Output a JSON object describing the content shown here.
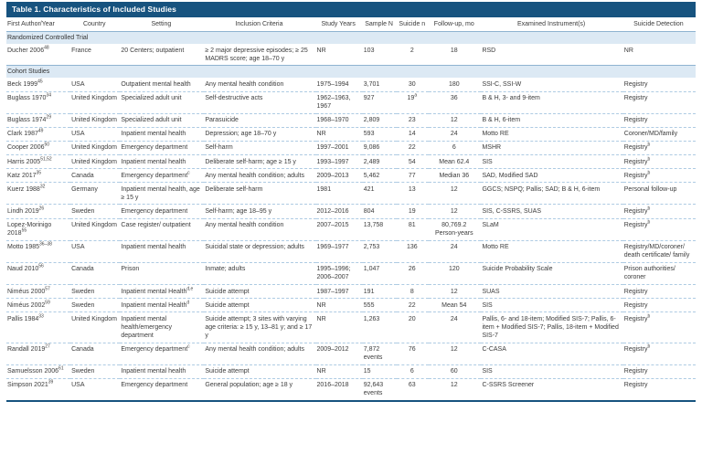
{
  "table": {
    "title": "Table 1. Characteristics of Included Studies",
    "columns": [
      {
        "key": "author",
        "label": "First Author/Year",
        "width": "9.3%",
        "header_align": "al",
        "body_align": "al"
      },
      {
        "key": "country",
        "label": "Country",
        "width": "7.2%",
        "header_align": "ac",
        "body_align": "al"
      },
      {
        "key": "setting",
        "label": "Setting",
        "width": "12.2%",
        "header_align": "ac",
        "body_align": "al"
      },
      {
        "key": "inclusion",
        "label": "Inclusion Criteria",
        "width": "16.2%",
        "header_align": "ac",
        "body_align": "al"
      },
      {
        "key": "years",
        "label": "Study Years",
        "width": "6.8%",
        "header_align": "ac",
        "body_align": "al"
      },
      {
        "key": "sample",
        "label": "Sample N",
        "width": "5.0%",
        "header_align": "ac",
        "body_align": "al"
      },
      {
        "key": "suicide",
        "label": "Suicide n",
        "width": "4.6%",
        "header_align": "ac",
        "body_align": "ac"
      },
      {
        "key": "followup",
        "label": "Follow-up, mo",
        "width": "7.6%",
        "header_align": "ac",
        "body_align": "ac"
      },
      {
        "key": "instruments",
        "label": "Examined Instrument(s)",
        "width": "20.6%",
        "header_align": "ac",
        "body_align": "al"
      },
      {
        "key": "detection",
        "label": "Suicide Detection",
        "width": "10.5%",
        "header_align": "ac",
        "body_align": "al"
      }
    ],
    "sections": [
      {
        "label": "Randomized Controlled Trial",
        "rows": [
          {
            "author": "Ducher 2006^{48}",
            "country": "France",
            "setting": "20 Centers; outpatient",
            "inclusion": "≥ 2 major depressive episodes; ≥ 25 MADRS score; age 18–70 y",
            "years": "NR",
            "sample": "103",
            "suicide": "2",
            "followup": "18",
            "instruments": "RSD",
            "detection": "NR"
          }
        ]
      },
      {
        "label": "Cohort Studies",
        "rows": [
          {
            "author": "Beck 1999^{45}",
            "country": "USA",
            "setting": "Outpatient mental health",
            "inclusion": "Any mental health condition",
            "years": "1975–1994",
            "sample": "3,701",
            "suicide": "30",
            "followup": "180",
            "instruments": "SSI-C, SSI-W",
            "detection": "Registry"
          },
          {
            "author": "Buglass 1970^{34}",
            "country": "United Kingdom",
            "setting": "Specialized adult unit",
            "inclusion": "Self-destructive acts",
            "years": "1962–1963, 1967",
            "sample": "927",
            "suicide": "19^{a}",
            "followup": "36",
            "instruments": "B & H, 3- and 9-item",
            "detection": "Registry"
          },
          {
            "author": "Buglass 1974^{29}",
            "country": "United Kingdom",
            "setting": "Specialized adult unit",
            "inclusion": "Parasuicide",
            "years": "1968–1970",
            "sample": "2,809",
            "suicide": "23",
            "followup": "12",
            "instruments": "B & H, 6-item",
            "detection": "Registry"
          },
          {
            "author": "Clark 1987^{49}",
            "country": "USA",
            "setting": "Inpatient mental health",
            "inclusion": "Depression; age 18–70 y",
            "years": "NR",
            "sample": "593",
            "suicide": "14",
            "followup": "24",
            "instruments": "Motto RE",
            "detection": "Coroner/MD/family"
          },
          {
            "author": "Cooper 2006^{50}",
            "country": "United Kingdom",
            "setting": "Emergency department",
            "inclusion": "Self-harm",
            "years": "1997–2001",
            "sample": "9,086",
            "suicide": "22",
            "followup": "6",
            "instruments": "MSHR",
            "detection": "Registry^{b}"
          },
          {
            "author": "Harris 2005^{51,52}",
            "country": "United Kingdom",
            "setting": "Inpatient mental health",
            "inclusion": "Deliberate self-harm; age ≥ 15 y",
            "years": "1993–1997",
            "sample": "2,489",
            "suicide": "54",
            "followup": "Mean 62.4",
            "instruments": "SIS",
            "detection": "Registry^{b}"
          },
          {
            "author": "Katz 2017^{35}",
            "country": "Canada",
            "setting": "Emergency department^{c}",
            "inclusion": "Any mental health condition; adults",
            "years": "2009–2013",
            "sample": "5,462",
            "suicide": "77",
            "followup": "Median 36",
            "instruments": "SAD, Modified SAD",
            "detection": "Registry^{b}"
          },
          {
            "author": "Kuerz 1988^{32}",
            "country": "Germany",
            "setting": "Inpatient mental health, age ≥ 15 y",
            "inclusion": "Deliberate self-harm",
            "years": "1981",
            "sample": "421",
            "suicide": "13",
            "followup": "12",
            "instruments": "GGCS; NSPQ; Pallis; SAD; B & H, 6-item",
            "detection": "Personal follow-up"
          },
          {
            "author": "Lindh 2019^{26}",
            "country": "Sweden",
            "setting": "Emergency department",
            "inclusion": "Self-harm; age 18–95 y",
            "years": "2012–2016",
            "sample": "804",
            "suicide": "19",
            "followup": "12",
            "instruments": "SIS, C-SSRS, SUAS",
            "detection": "Registry^{b}"
          },
          {
            "author": "Lopez-Morinigo 2018^{55}",
            "country": "United Kingdom",
            "setting": "Case register/ outpatient",
            "inclusion": "Any mental health condition",
            "years": "2007–2015",
            "sample": "13,758",
            "suicide": "81",
            "followup": "80,769.2 Person-years",
            "instruments": "SLaM",
            "detection": "Registry^{b}"
          },
          {
            "author": "Motto 1985^{36–38}",
            "country": "USA",
            "setting": "Inpatient mental health",
            "inclusion": "Suicidal state or depression; adults",
            "years": "1969–1977",
            "sample": "2,753",
            "suicide": "136",
            "followup": "24",
            "instruments": "Motto RE",
            "detection": "Registry/MD/coroner/ death certificate/ family"
          },
          {
            "author": "Naud 2010^{56}",
            "country": "Canada",
            "setting": "Prison",
            "inclusion": "Inmate; adults",
            "years": "1995–1996; 2006–2007",
            "sample": "1,047",
            "suicide": "26",
            "followup": "120",
            "instruments": "Suicide Probability Scale",
            "detection": "Prison authorities/ coroner"
          },
          {
            "author": "Niméus 2000^{57}",
            "country": "Sweden",
            "setting": "Inpatient mental Health^{d,e}",
            "inclusion": "Suicide attempt",
            "years": "1987–1997",
            "sample": "191",
            "suicide": "8",
            "followup": "12",
            "instruments": "SUAS",
            "detection": "Registry"
          },
          {
            "author": "Niméus 2002^{59}",
            "country": "Sweden",
            "setting": "Inpatient mental Health^{d}",
            "inclusion": "Suicide attempt",
            "years": "NR",
            "sample": "555",
            "suicide": "22",
            "followup": "Mean 54",
            "instruments": "SIS",
            "detection": "Registry"
          },
          {
            "author": "Pallis 1984^{33}",
            "country": "United Kingdom",
            "setting": "Inpatient mental health/emergency department",
            "inclusion": "Suicide attempt; 3 sites with varying age criteria: ≥ 15 y, 13–81 y; and ≥ 17 y",
            "years": "NR",
            "sample": "1,263",
            "suicide": "20",
            "followup": "24",
            "instruments": "Pallis, 6- and 18-item; Modified SIS-7; Pallis, 6-item + Modified SIS-7; Pallis, 18-item + Modified SIS-7",
            "detection": "Registry^{b}"
          },
          {
            "author": "Randall 2019^{27}",
            "country": "Canada",
            "setting": "Emergency department^{c}",
            "inclusion": "Any mental health condition; adults",
            "years": "2009–2012",
            "sample": "7,872 events",
            "suicide": "76",
            "followup": "12",
            "instruments": "C-CASA",
            "detection": "Registry^{b}"
          },
          {
            "author": "Samuelsson 2006^{61}",
            "country": "Sweden",
            "setting": "Inpatient mental health",
            "inclusion": "Suicide attempt",
            "years": "NR",
            "sample": "15",
            "suicide": "6",
            "followup": "60",
            "instruments": "SIS",
            "detection": "Registry"
          },
          {
            "author": "Simpson 2021^{39}",
            "country": "USA",
            "setting": "Emergency department",
            "inclusion": "General population; age ≥ 18 y",
            "years": "2016–2018",
            "sample": "92,643 events",
            "suicide": "63",
            "followup": "12",
            "instruments": "C-SSRS Screener",
            "detection": "Registry"
          }
        ]
      }
    ]
  },
  "colors": {
    "title_bar_bg": "#17537f",
    "title_text": "#ffffff",
    "section_band_bg": "#dce9f4",
    "row_divider_dashed": "#aecbe3",
    "section_divider_solid": "#8fb3d1",
    "body_text": "#3b3b3b",
    "table_bottom_border": "#17537f"
  }
}
